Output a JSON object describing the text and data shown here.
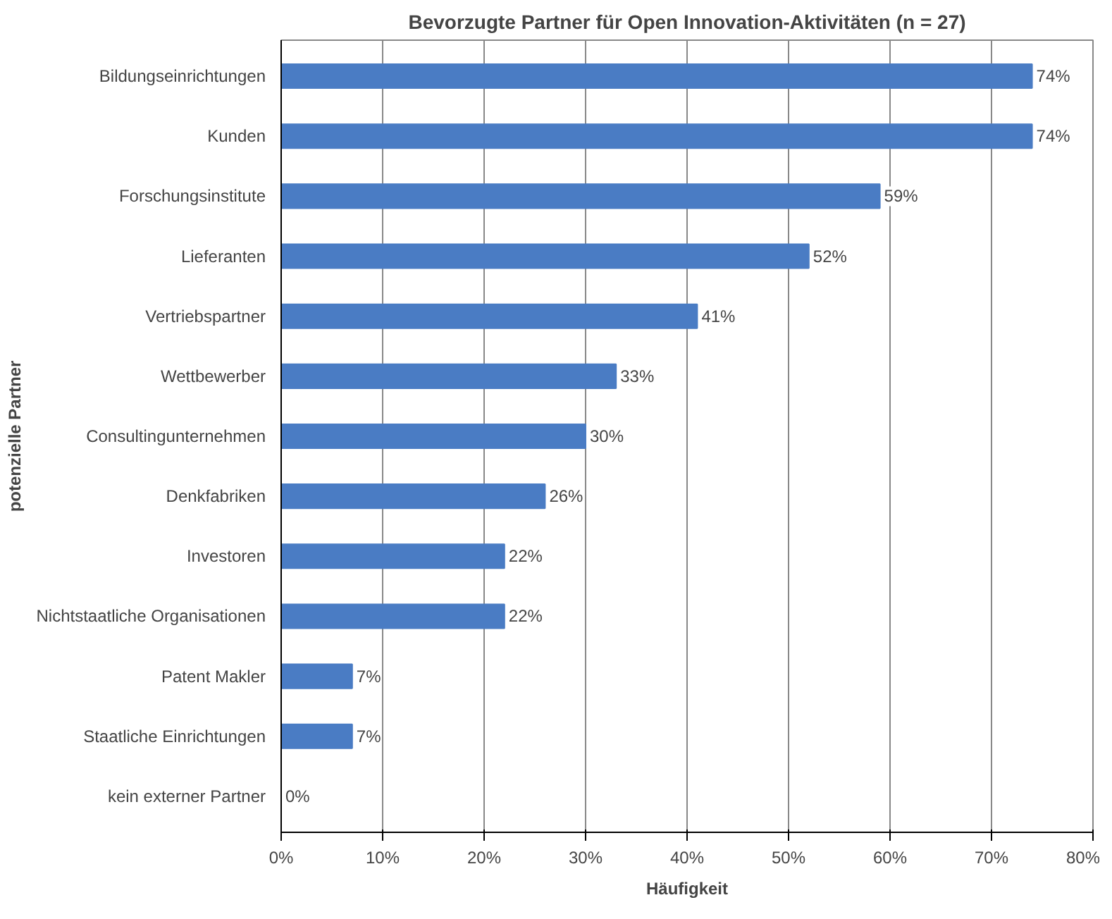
{
  "chart_data": {
    "type": "bar",
    "orientation": "horizontal",
    "title": "Bevorzugte Partner für Open Innovation-Aktivitäten (n = 27)",
    "xlabel": "Häufigkeit",
    "ylabel": "potenzielle Partner",
    "categories": [
      "Bildungseinrichtungen",
      "Kunden",
      "Forschungsinstitute",
      "Lieferanten",
      "Vertriebspartner",
      "Wettbewerber",
      "Consultingunternehmen",
      "Denkfabriken",
      "Investoren",
      "Nichtstaatliche Organisationen",
      "Patent Makler",
      "Staatliche Einrichtungen",
      "kein externer Partner"
    ],
    "values": [
      74,
      74,
      59,
      52,
      41,
      33,
      30,
      26,
      22,
      22,
      7,
      7,
      0
    ],
    "value_labels": [
      "74%",
      "74%",
      "59%",
      "52%",
      "41%",
      "33%",
      "30%",
      "26%",
      "22%",
      "22%",
      "7%",
      "7%",
      "0%"
    ],
    "color": "#4a7cc4",
    "xlim": [
      0,
      80
    ],
    "xticks": [
      {
        "value": 0,
        "label": "0%"
      },
      {
        "value": 10,
        "label": "10%"
      },
      {
        "value": 20,
        "label": "20%"
      },
      {
        "value": 30,
        "label": "30%"
      },
      {
        "value": 40,
        "label": "40%"
      },
      {
        "value": 50,
        "label": "50%"
      },
      {
        "value": 60,
        "label": "60%"
      },
      {
        "value": 70,
        "label": "70%"
      },
      {
        "value": 80,
        "label": "80%"
      }
    ],
    "grid": "x"
  }
}
